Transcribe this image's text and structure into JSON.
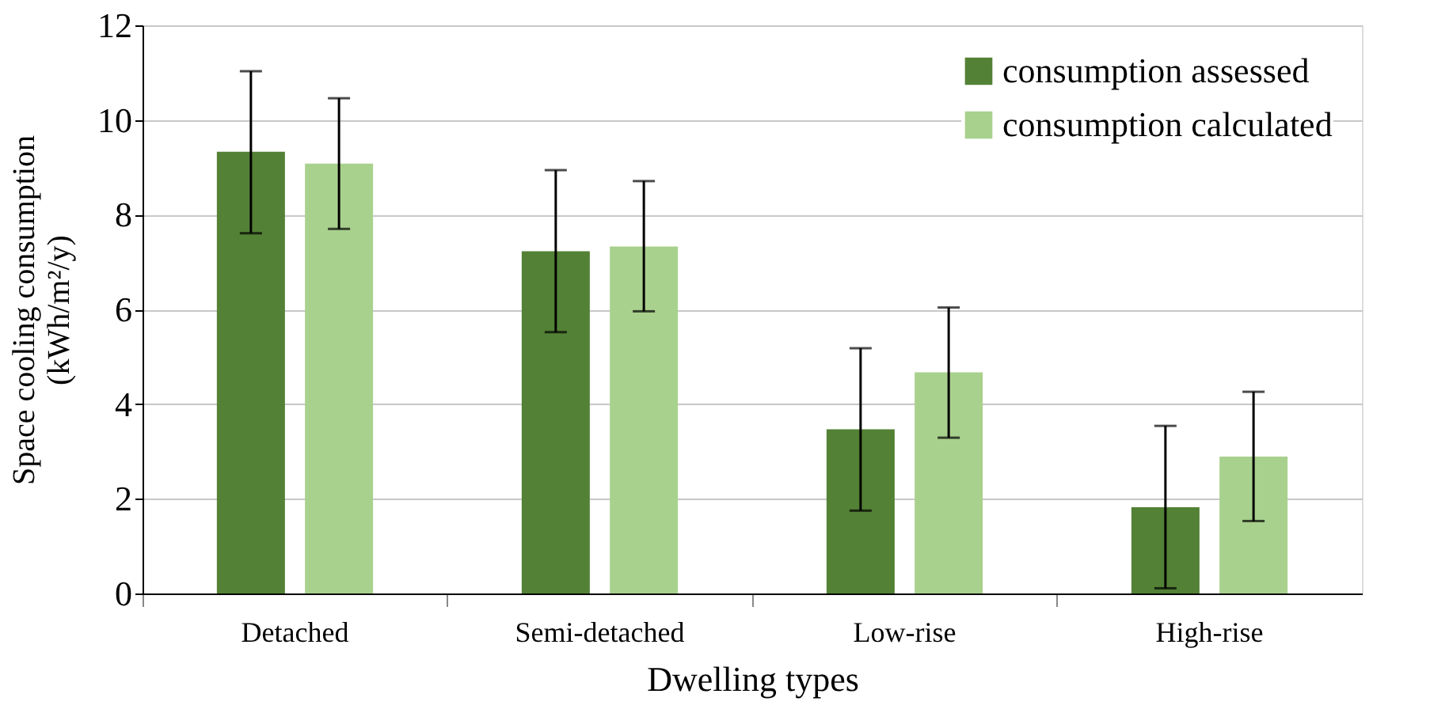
{
  "chart_data": {
    "type": "bar",
    "xlabel": "Dwelling types",
    "ylabel": "Space cooling consumption\n(kWh/m²/y)",
    "categories": [
      "Detached",
      "Semi-detached",
      "Low-rise",
      "High-rise"
    ],
    "series": [
      {
        "name": "consumption assessed",
        "color": "#538135",
        "values": [
          9.33,
          7.23,
          3.47,
          1.82
        ],
        "errors": [
          [
            7.61,
            11.03
          ],
          [
            5.52,
            8.94
          ],
          [
            1.75,
            5.18
          ],
          [
            0.11,
            3.54
          ]
        ]
      },
      {
        "name": "consumption calculated",
        "color": "#a9d18e",
        "values": [
          9.08,
          7.33,
          4.67,
          2.89
        ],
        "errors": [
          [
            7.7,
            10.46
          ],
          [
            5.96,
            8.71
          ],
          [
            3.29,
            6.04
          ],
          [
            1.53,
            4.26
          ]
        ]
      }
    ],
    "ylim": [
      0,
      12
    ],
    "yticks": [
      0,
      2,
      4,
      6,
      8,
      10,
      12
    ],
    "grid": "y",
    "legend": "top right"
  }
}
